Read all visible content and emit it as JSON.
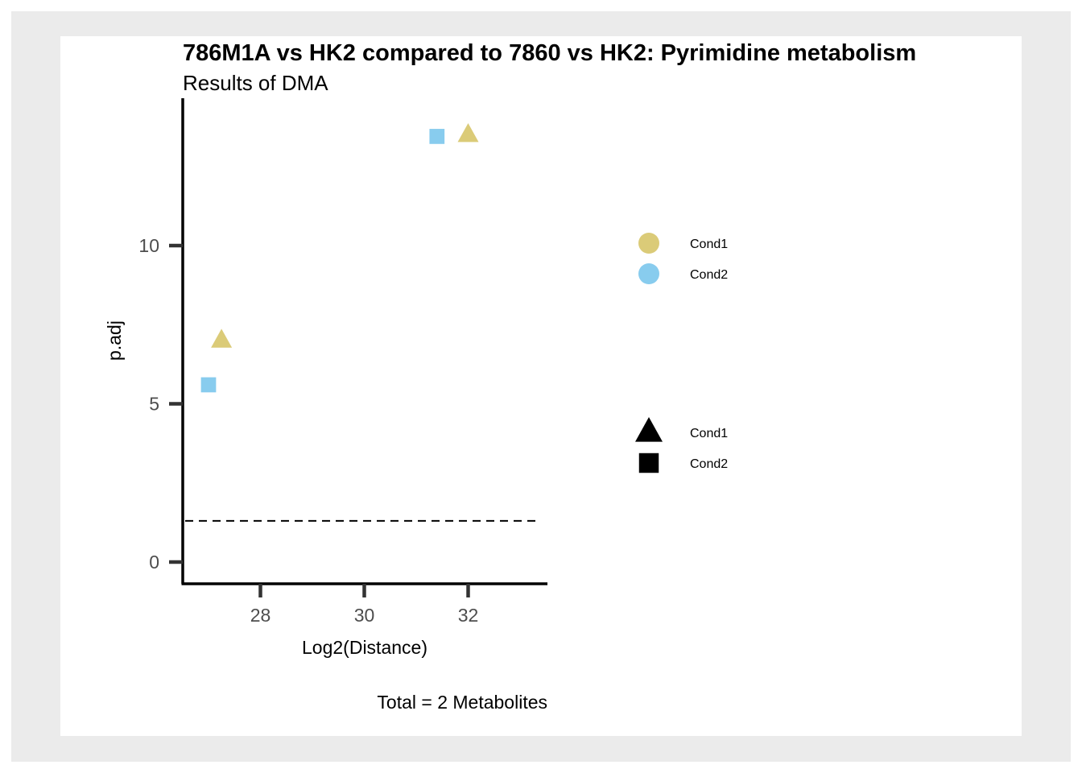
{
  "chart_data": {
    "type": "scatter",
    "title": "786M1A vs HK2 compared to 7860 vs HK2: Pyrimidine metabolism",
    "subtitle": "Results of DMA",
    "xlabel": "Log2(Distance)",
    "ylabel": "p.adj",
    "caption": "Total = 2 Metabolites",
    "xlim": [
      26.5,
      33.5
    ],
    "ylim": [
      -0.65,
      14.7
    ],
    "x_ticks": [
      28,
      30,
      32
    ],
    "x_tick_labels": [
      "28",
      "30",
      "32"
    ],
    "y_ticks": [
      0,
      5,
      10
    ],
    "y_tick_labels": [
      "0",
      "5",
      "10"
    ],
    "threshold_line": 1.3,
    "grid": false,
    "points": [
      {
        "x": 31.4,
        "y": 13.45,
        "color": "Cond2",
        "shape": "Cond2"
      },
      {
        "x": 32.0,
        "y": 13.5,
        "color": "Cond1",
        "shape": "Cond1"
      },
      {
        "x": 27.25,
        "y": 7.0,
        "color": "Cond1",
        "shape": "Cond1"
      },
      {
        "x": 27.0,
        "y": 5.6,
        "color": "Cond2",
        "shape": "Cond2"
      }
    ],
    "color_legend": [
      {
        "label": "Cond1",
        "color": "#dbcb78"
      },
      {
        "label": "Cond2",
        "color": "#88ccee"
      }
    ],
    "shape_legend": [
      {
        "label": "Cond1",
        "shape": "triangle"
      },
      {
        "label": "Cond2",
        "shape": "square"
      }
    ],
    "legend_placement": "right"
  }
}
